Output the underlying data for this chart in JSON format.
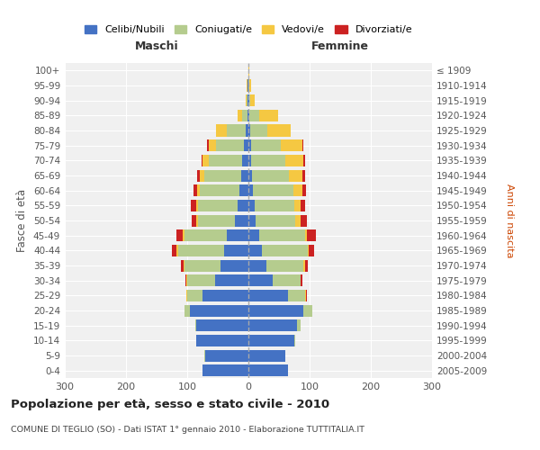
{
  "age_groups": [
    "0-4",
    "5-9",
    "10-14",
    "15-19",
    "20-24",
    "25-29",
    "30-34",
    "35-39",
    "40-44",
    "45-49",
    "50-54",
    "55-59",
    "60-64",
    "65-69",
    "70-74",
    "75-79",
    "80-84",
    "85-89",
    "90-94",
    "95-99",
    "100+"
  ],
  "birth_years": [
    "2005-2009",
    "2000-2004",
    "1995-1999",
    "1990-1994",
    "1985-1989",
    "1980-1984",
    "1975-1979",
    "1970-1974",
    "1965-1969",
    "1960-1964",
    "1955-1959",
    "1950-1954",
    "1945-1949",
    "1940-1944",
    "1935-1939",
    "1930-1934",
    "1925-1929",
    "1920-1924",
    "1915-1919",
    "1910-1914",
    "≤ 1909"
  ],
  "colors": {
    "celibi": "#4472C4",
    "coniugati": "#B5CC8E",
    "vedovi": "#F5C842",
    "divorziati": "#CC2222"
  },
  "maschi": {
    "celibi": [
      75,
      70,
      85,
      85,
      95,
      75,
      55,
      45,
      40,
      35,
      22,
      18,
      15,
      12,
      10,
      8,
      5,
      2,
      1,
      1,
      0
    ],
    "coniugati": [
      0,
      2,
      0,
      2,
      10,
      25,
      45,
      60,
      75,
      70,
      60,
      65,
      65,
      60,
      55,
      45,
      30,
      8,
      2,
      1,
      0
    ],
    "vedovi": [
      0,
      0,
      0,
      0,
      0,
      1,
      1,
      1,
      2,
      2,
      3,
      3,
      4,
      8,
      10,
      12,
      18,
      8,
      2,
      1,
      0
    ],
    "divorziati": [
      0,
      0,
      0,
      0,
      0,
      1,
      2,
      5,
      8,
      10,
      8,
      8,
      5,
      4,
      2,
      2,
      0,
      0,
      0,
      0,
      0
    ]
  },
  "femmine": {
    "celibi": [
      65,
      60,
      75,
      80,
      90,
      65,
      40,
      30,
      22,
      18,
      12,
      10,
      8,
      6,
      5,
      5,
      3,
      2,
      1,
      0,
      0
    ],
    "coniugati": [
      0,
      0,
      2,
      5,
      15,
      28,
      45,
      60,
      75,
      75,
      65,
      65,
      65,
      60,
      55,
      48,
      28,
      15,
      2,
      1,
      0
    ],
    "vedovi": [
      0,
      0,
      0,
      0,
      0,
      1,
      1,
      2,
      2,
      3,
      8,
      10,
      15,
      22,
      30,
      35,
      38,
      32,
      8,
      3,
      1
    ],
    "divorziati": [
      0,
      0,
      0,
      0,
      0,
      1,
      2,
      5,
      8,
      14,
      10,
      8,
      6,
      4,
      2,
      2,
      0,
      0,
      0,
      0,
      0
    ]
  },
  "xlim": 300,
  "title": "Popolazione per età, sesso e stato civile - 2010",
  "subtitle": "COMUNE DI TEGLIO (SO) - Dati ISTAT 1° gennaio 2010 - Elaborazione TUTTITALIA.IT",
  "ylabel": "Fasce di età",
  "ylabel_right": "Anni di nascita",
  "label_maschi": "Maschi",
  "label_femmine": "Femmine",
  "legend_labels": [
    "Celibi/Nubili",
    "Coniugati/e",
    "Vedovi/e",
    "Divorziati/e"
  ],
  "bg_color": "#FFFFFF",
  "plot_bg": "#F0F0F0",
  "grid_color": "#FFFFFF"
}
